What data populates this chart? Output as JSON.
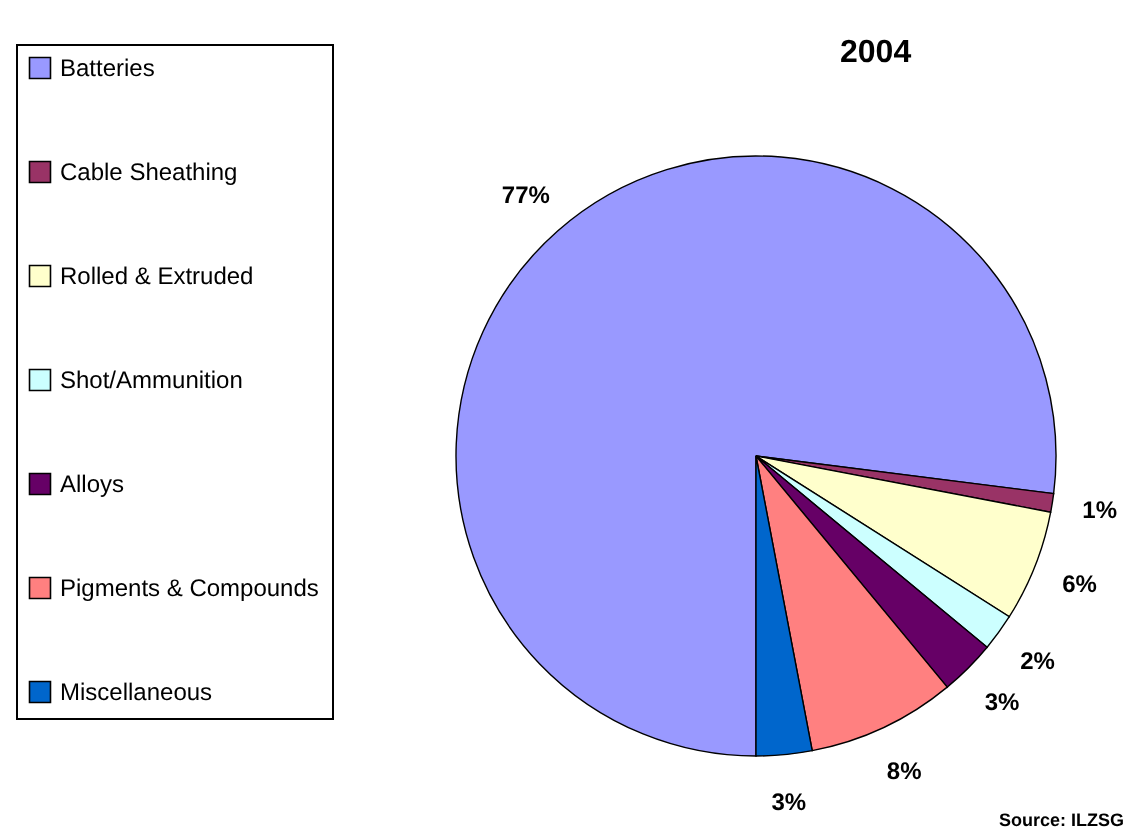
{
  "chart_data": {
    "type": "pie",
    "title": "2004",
    "categories": [
      "Batteries",
      "Cable Sheathing",
      "Rolled & Extruded",
      "Shot/Ammunition",
      "Alloys",
      "Pigments & Compounds",
      "Miscellaneous"
    ],
    "values": [
      77,
      1,
      6,
      2,
      3,
      8,
      3
    ],
    "colors": [
      "#9999ff",
      "#993366",
      "#ffffcc",
      "#ccffff",
      "#660066",
      "#ff8080",
      "#0066cc"
    ],
    "value_labels": [
      "77%",
      "1%",
      "6%",
      "2%",
      "3%",
      "8%",
      "3%"
    ],
    "legend": "left",
    "annotations": [
      "Source: ILZSG"
    ]
  }
}
